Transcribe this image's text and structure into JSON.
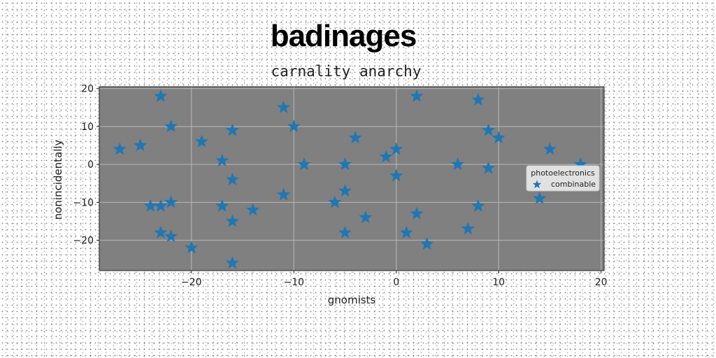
{
  "chart_data": {
    "type": "scatter",
    "title": "badinages",
    "subtitle": "carnality anarchy",
    "xlabel": "gnomists",
    "ylabel": "nonincidentally",
    "xlim": [
      -29,
      20.3
    ],
    "ylim": [
      -28,
      20.5
    ],
    "xticks": [
      -20,
      -10,
      0,
      10,
      20
    ],
    "yticks": [
      20,
      10,
      0,
      -10,
      -20
    ],
    "grid": true,
    "legend": {
      "title": "photoelectronics",
      "placement": "right"
    },
    "marker": "star",
    "colors": {
      "series": "#1f77b4",
      "plot_bg": "#808080",
      "grid": "#b8b8b8"
    },
    "series": [
      {
        "name": "combinable",
        "points": [
          [
            -27,
            4
          ],
          [
            -25,
            5
          ],
          [
            -23,
            18
          ],
          [
            -22,
            10
          ],
          [
            -19,
            6
          ],
          [
            -17,
            1
          ],
          [
            -16,
            9
          ],
          [
            -16,
            -4
          ],
          [
            -24,
            -11
          ],
          [
            -23,
            -11
          ],
          [
            -22,
            -10
          ],
          [
            -17,
            -11
          ],
          [
            -14,
            -12
          ],
          [
            -16,
            -15
          ],
          [
            -23,
            -18
          ],
          [
            -22,
            -19
          ],
          [
            -20,
            -22
          ],
          [
            -16,
            -26
          ],
          [
            -11,
            15
          ],
          [
            -10,
            10
          ],
          [
            -9,
            0
          ],
          [
            -11,
            -8
          ],
          [
            -5,
            0
          ],
          [
            -4,
            7
          ],
          [
            -5,
            -7
          ],
          [
            -6,
            -10
          ],
          [
            -3,
            -14
          ],
          [
            -5,
            -18
          ],
          [
            -1,
            2
          ],
          [
            0,
            4
          ],
          [
            0,
            -3
          ],
          [
            2,
            18
          ],
          [
            2,
            -13
          ],
          [
            1,
            -18
          ],
          [
            3,
            -21
          ],
          [
            6,
            0
          ],
          [
            8,
            17
          ],
          [
            9,
            9
          ],
          [
            10,
            7
          ],
          [
            9,
            -1
          ],
          [
            8,
            -11
          ],
          [
            7,
            -17
          ],
          [
            14,
            -9
          ],
          [
            15,
            4
          ],
          [
            18,
            0
          ]
        ]
      }
    ]
  }
}
